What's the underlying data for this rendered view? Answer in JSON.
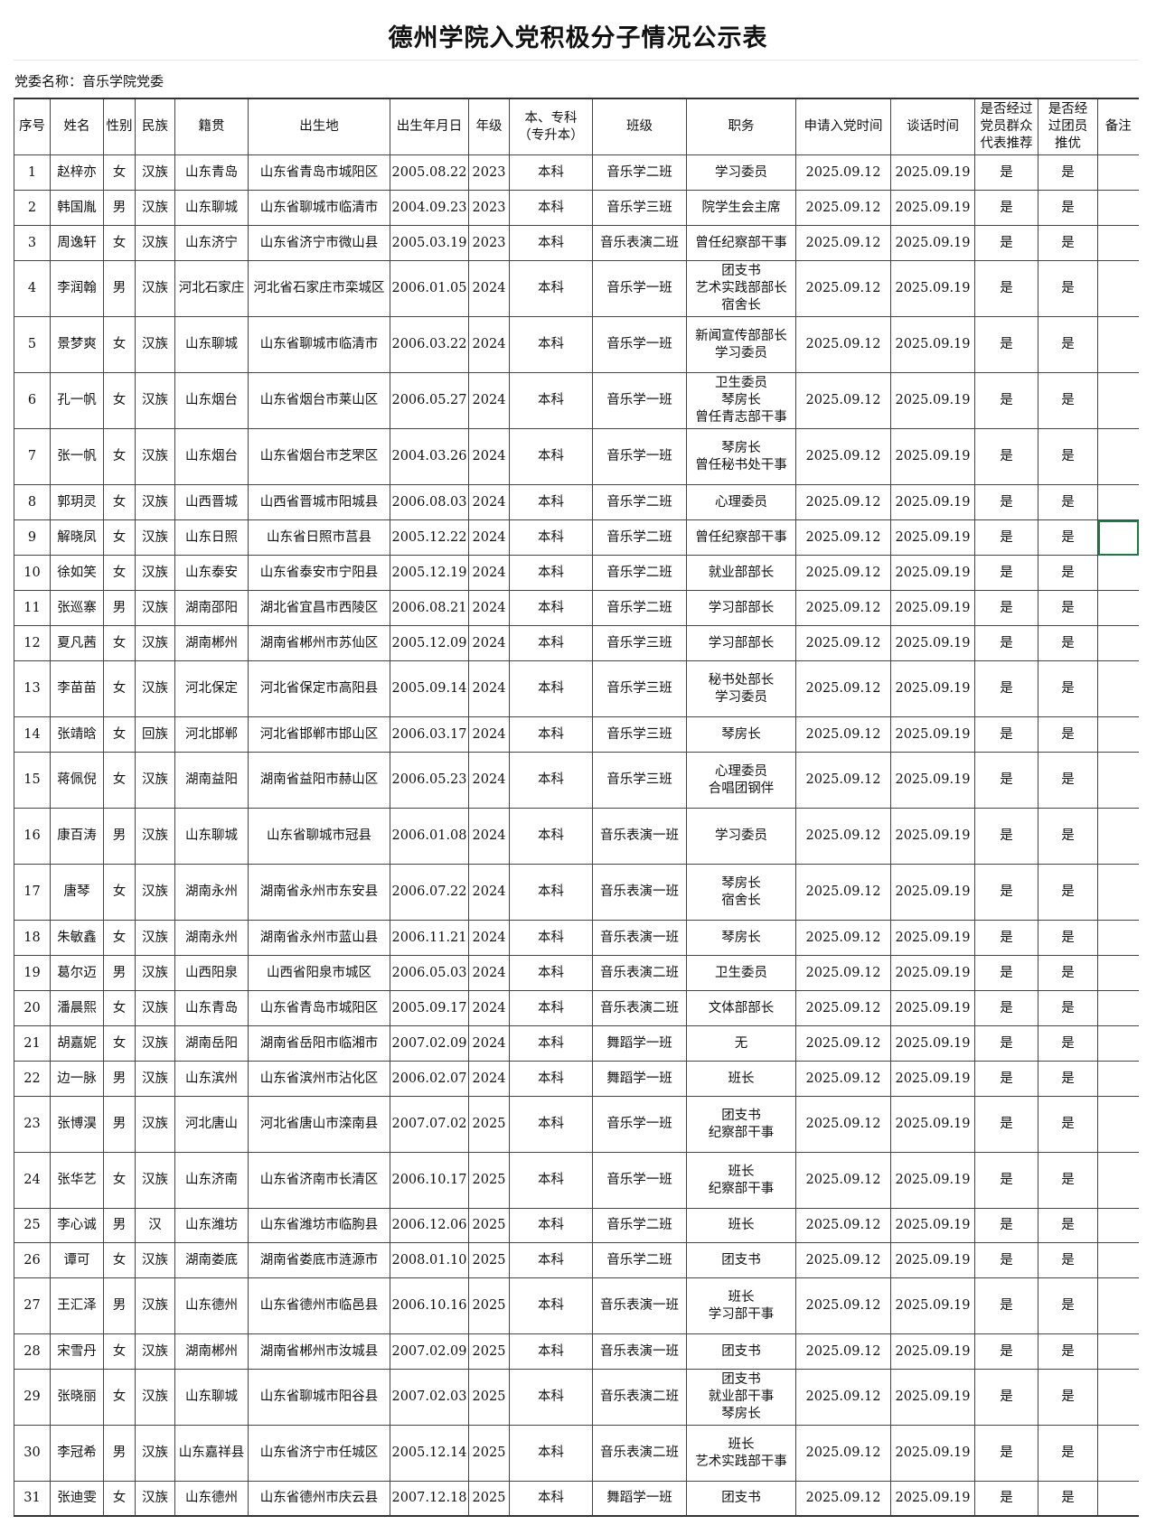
{
  "title": "德州学院入党积极分子情况公示表",
  "party_committee_label": "党委名称：音乐学院党委",
  "headers": [
    "序号",
    "姓名",
    "性别",
    "民族",
    "籍贯",
    "出生地",
    "出生年月日",
    "年级",
    "本、专科\n（专升本）",
    "班级",
    "职务",
    "申请入党时间",
    "谈话时间",
    "是否经过\n党员群众\n代表推荐",
    "是否经\n过团员\n推优",
    "备注"
  ],
  "rows": [
    [
      "1",
      "赵梓亦",
      "女",
      "汉族",
      "山东青岛",
      "山东省青岛市城阳区",
      "2005.08.22",
      "2023",
      "本科",
      "音乐学二班",
      [
        "学习委员"
      ],
      "2025.09.12",
      "2025.09.19",
      "是",
      "是",
      ""
    ],
    [
      "2",
      "韩国胤",
      "男",
      "汉族",
      "山东聊城",
      "山东省聊城市临清市",
      "2004.09.23",
      "2023",
      "本科",
      "音乐学三班",
      [
        "院学生会主席"
      ],
      "2025.09.12",
      "2025.09.19",
      "是",
      "是",
      ""
    ],
    [
      "3",
      "周逸轩",
      "女",
      "汉族",
      "山东济宁",
      "山东省济宁市微山县",
      "2005.03.19",
      "2023",
      "本科",
      "音乐表演二班",
      [
        "曾任纪察部干事"
      ],
      "2025.09.12",
      "2025.09.19",
      "是",
      "是",
      ""
    ],
    [
      "4",
      "李润翰",
      "男",
      "汉族",
      "河北石家庄",
      "河北省石家庄市栾城区",
      "2006.01.05",
      "2024",
      "本科",
      "音乐学一班",
      [
        "团支书",
        "艺术实践部部长",
        "宿舍长"
      ],
      "2025.09.12",
      "2025.09.19",
      "是",
      "是",
      ""
    ],
    [
      "5",
      "景梦爽",
      "女",
      "汉族",
      "山东聊城",
      "山东省聊城市临清市",
      "2006.03.22",
      "2024",
      "本科",
      "音乐学一班",
      [
        "新闻宣传部部长",
        "学习委员"
      ],
      "2025.09.12",
      "2025.09.19",
      "是",
      "是",
      ""
    ],
    [
      "6",
      "孔一帆",
      "女",
      "汉族",
      "山东烟台",
      "山东省烟台市莱山区",
      "2006.05.27",
      "2024",
      "本科",
      "音乐学一班",
      [
        "卫生委员",
        "琴房长",
        "曾任青志部干事"
      ],
      "2025.09.12",
      "2025.09.19",
      "是",
      "是",
      ""
    ],
    [
      "7",
      "张一帆",
      "女",
      "汉族",
      "山东烟台",
      "山东省烟台市芝罘区",
      "2004.03.26",
      "2024",
      "本科",
      "音乐学一班",
      [
        "琴房长",
        "曾任秘书处干事"
      ],
      "2025.09.12",
      "2025.09.19",
      "是",
      "是",
      ""
    ],
    [
      "8",
      "郭玥灵",
      "女",
      "汉族",
      "山西晋城",
      "山西省晋城市阳城县",
      "2006.08.03",
      "2024",
      "本科",
      "音乐学二班",
      [
        "心理委员"
      ],
      "2025.09.12",
      "2025.09.19",
      "是",
      "是",
      ""
    ],
    [
      "9",
      "解晓凤",
      "女",
      "汉族",
      "山东日照",
      "山东省日照市莒县",
      "2005.12.22",
      "2024",
      "本科",
      "音乐学二班",
      [
        "曾任纪察部干事"
      ],
      "2025.09.12",
      "2025.09.19",
      "是",
      "是",
      ""
    ],
    [
      "10",
      "徐如笑",
      "女",
      "汉族",
      "山东泰安",
      "山东省泰安市宁阳县",
      "2005.12.19",
      "2024",
      "本科",
      "音乐学二班",
      [
        "就业部部长"
      ],
      "2025.09.12",
      "2025.09.19",
      "是",
      "是",
      ""
    ],
    [
      "11",
      "张巡寨",
      "男",
      "汉族",
      "湖南邵阳",
      "湖北省宜昌市西陵区",
      "2006.08.21",
      "2024",
      "本科",
      "音乐学二班",
      [
        "学习部部长"
      ],
      "2025.09.12",
      "2025.09.19",
      "是",
      "是",
      ""
    ],
    [
      "12",
      "夏凡茜",
      "女",
      "汉族",
      "湖南郴州",
      "湖南省郴州市苏仙区",
      "2005.12.09",
      "2024",
      "本科",
      "音乐学三班",
      [
        "学习部部长"
      ],
      "2025.09.12",
      "2025.09.19",
      "是",
      "是",
      ""
    ],
    [
      "13",
      "李苗苗",
      "女",
      "汉族",
      "河北保定",
      "河北省保定市高阳县",
      "2005.09.14",
      "2024",
      "本科",
      "音乐学三班",
      [
        "秘书处部长",
        "学习委员"
      ],
      "2025.09.12",
      "2025.09.19",
      "是",
      "是",
      ""
    ],
    [
      "14",
      "张靖晗",
      "女",
      "回族",
      "河北邯郸",
      "河北省邯郸市邯山区",
      "2006.03.17",
      "2024",
      "本科",
      "音乐学三班",
      [
        "琴房长"
      ],
      "2025.09.12",
      "2025.09.19",
      "是",
      "是",
      ""
    ],
    [
      "15",
      "蒋佩倪",
      "女",
      "汉族",
      "湖南益阳",
      "湖南省益阳市赫山区",
      "2006.05.23",
      "2024",
      "本科",
      "音乐学三班",
      [
        "心理委员",
        "合唱团钢伴"
      ],
      "2025.09.12",
      "2025.09.19",
      "是",
      "是",
      ""
    ],
    [
      "16",
      "康百涛",
      "男",
      "汉族",
      "山东聊城",
      "山东省聊城市冠县",
      "2006.01.08",
      "2024",
      "本科",
      "音乐表演一班",
      [
        "学习委员"
      ],
      "2025.09.12",
      "2025.09.19",
      "是",
      "是",
      ""
    ],
    [
      "17",
      "唐琴",
      "女",
      "汉族",
      "湖南永州",
      "湖南省永州市东安县",
      "2006.07.22",
      "2024",
      "本科",
      "音乐表演一班",
      [
        "琴房长",
        "宿舍长"
      ],
      "2025.09.12",
      "2025.09.19",
      "是",
      "是",
      ""
    ],
    [
      "18",
      "朱敏鑫",
      "女",
      "汉族",
      "湖南永州",
      "湖南省永州市蓝山县",
      "2006.11.21",
      "2024",
      "本科",
      "音乐表演一班",
      [
        "琴房长"
      ],
      "2025.09.12",
      "2025.09.19",
      "是",
      "是",
      ""
    ],
    [
      "19",
      "葛尔迈",
      "男",
      "汉族",
      "山西阳泉",
      "山西省阳泉市城区",
      "2006.05.03",
      "2024",
      "本科",
      "音乐表演二班",
      [
        "卫生委员"
      ],
      "2025.09.12",
      "2025.09.19",
      "是",
      "是",
      ""
    ],
    [
      "20",
      "潘晨熙",
      "女",
      "汉族",
      "山东青岛",
      "山东省青岛市城阳区",
      "2005.09.17",
      "2024",
      "本科",
      "音乐表演二班",
      [
        "文体部部长"
      ],
      "2025.09.12",
      "2025.09.19",
      "是",
      "是",
      ""
    ],
    [
      "21",
      "胡嘉妮",
      "女",
      "汉族",
      "湖南岳阳",
      "湖南省岳阳市临湘市",
      "2007.02.09",
      "2024",
      "本科",
      "舞蹈学一班",
      [
        "无"
      ],
      "2025.09.12",
      "2025.09.19",
      "是",
      "是",
      ""
    ],
    [
      "22",
      "边一脉",
      "男",
      "汉族",
      "山东滨州",
      "山东省滨州市沾化区",
      "2006.02.07",
      "2024",
      "本科",
      "舞蹈学一班",
      [
        "班长"
      ],
      "2025.09.12",
      "2025.09.19",
      "是",
      "是",
      ""
    ],
    [
      "23",
      "张博淏",
      "男",
      "汉族",
      "河北唐山",
      "河北省唐山市滦南县",
      "2007.07.02",
      "2025",
      "本科",
      "音乐学一班",
      [
        "团支书",
        "纪察部干事"
      ],
      "2025.09.12",
      "2025.09.19",
      "是",
      "是",
      ""
    ],
    [
      "24",
      "张华艺",
      "女",
      "汉族",
      "山东济南",
      "山东省济南市长清区",
      "2006.10.17",
      "2025",
      "本科",
      "音乐学一班",
      [
        "班长",
        "纪察部干事"
      ],
      "2025.09.12",
      "2025.09.19",
      "是",
      "是",
      ""
    ],
    [
      "25",
      "李心诚",
      "男",
      "汉",
      "山东潍坊",
      "山东省潍坊市临朐县",
      "2006.12.06",
      "2025",
      "本科",
      "音乐学二班",
      [
        "班长"
      ],
      "2025.09.12",
      "2025.09.19",
      "是",
      "是",
      ""
    ],
    [
      "26",
      "谭可",
      "女",
      "汉族",
      "湖南娄底",
      "湖南省娄底市涟源市",
      "2008.01.10",
      "2025",
      "本科",
      "音乐学二班",
      [
        "团支书"
      ],
      "2025.09.12",
      "2025.09.19",
      "是",
      "是",
      ""
    ],
    [
      "27",
      "王汇泽",
      "男",
      "汉族",
      "山东德州",
      "山东省德州市临邑县",
      "2006.10.16",
      "2025",
      "本科",
      "音乐表演一班",
      [
        "班长",
        "学习部干事"
      ],
      "2025.09.12",
      "2025.09.19",
      "是",
      "是",
      ""
    ],
    [
      "28",
      "宋雪丹",
      "女",
      "汉族",
      "湖南郴州",
      "湖南省郴州市汝城县",
      "2007.02.09",
      "2025",
      "本科",
      "音乐表演一班",
      [
        "团支书"
      ],
      "2025.09.12",
      "2025.09.19",
      "是",
      "是",
      ""
    ],
    [
      "29",
      "张晓丽",
      "女",
      "汉族",
      "山东聊城",
      "山东省聊城市阳谷县",
      "2007.02.03",
      "2025",
      "本科",
      "音乐表演二班",
      [
        "团支书",
        "就业部干事",
        "琴房长"
      ],
      "2025.09.12",
      "2025.09.19",
      "是",
      "是",
      ""
    ],
    [
      "30",
      "李冠希",
      "男",
      "汉族",
      "山东嘉祥县",
      "山东省济宁市任城区",
      "2005.12.14",
      "2025",
      "本科",
      "音乐表演二班",
      [
        "班长",
        "艺术实践部干事"
      ],
      "2025.09.12",
      "2025.09.19",
      "是",
      "是",
      ""
    ],
    [
      "31",
      "张迪雯",
      "女",
      "汉族",
      "山东德州",
      "山东省德州市庆云县",
      "2007.12.18",
      "2025",
      "本科",
      "舞蹈学一班",
      [
        "团支书"
      ],
      "2025.09.12",
      "2025.09.19",
      "是",
      "是",
      ""
    ]
  ],
  "selected_cell_color": "#1d7a46"
}
